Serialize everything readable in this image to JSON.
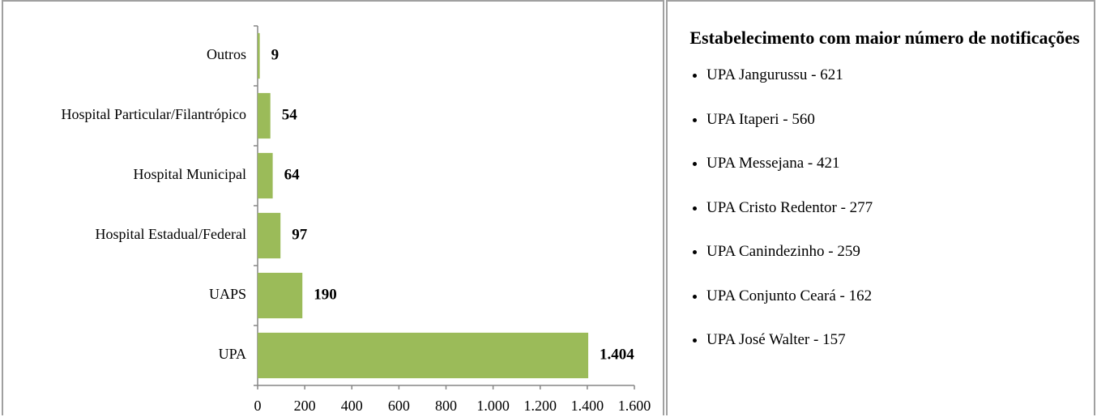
{
  "chart_data": {
    "type": "hbar",
    "categories": [
      "Outros",
      "Hospital Particular/Filantrópico",
      "Hospital Municipal",
      "Hospital Estadual/Federal",
      "UAPS",
      "UPA"
    ],
    "values": [
      9,
      54,
      64,
      97,
      190,
      1404
    ],
    "value_labels": [
      "9",
      "54",
      "64",
      "97",
      "190",
      "1.404"
    ],
    "color": "#9bbb59",
    "xlim": [
      0,
      1600
    ],
    "xticks": [
      0,
      200,
      400,
      600,
      800,
      {
        "value": 1000,
        "label": "1.000"
      },
      {
        "value": 1200,
        "label": "1.200"
      },
      {
        "value": 1400,
        "label": "1.400"
      },
      {
        "value": 1600,
        "label": "1.600"
      }
    ]
  },
  "panel": {
    "title": "Estabelecimento com maior  número de notificações",
    "items": [
      "UPA Jangurussu - 621",
      "UPA Itaperi - 560",
      "UPA Messejana - 421",
      "UPA Cristo Redentor - 277",
      "UPA Canindezinho - 259",
      "UPA Conjunto Ceará - 162",
      "UPA José Walter - 157"
    ]
  }
}
